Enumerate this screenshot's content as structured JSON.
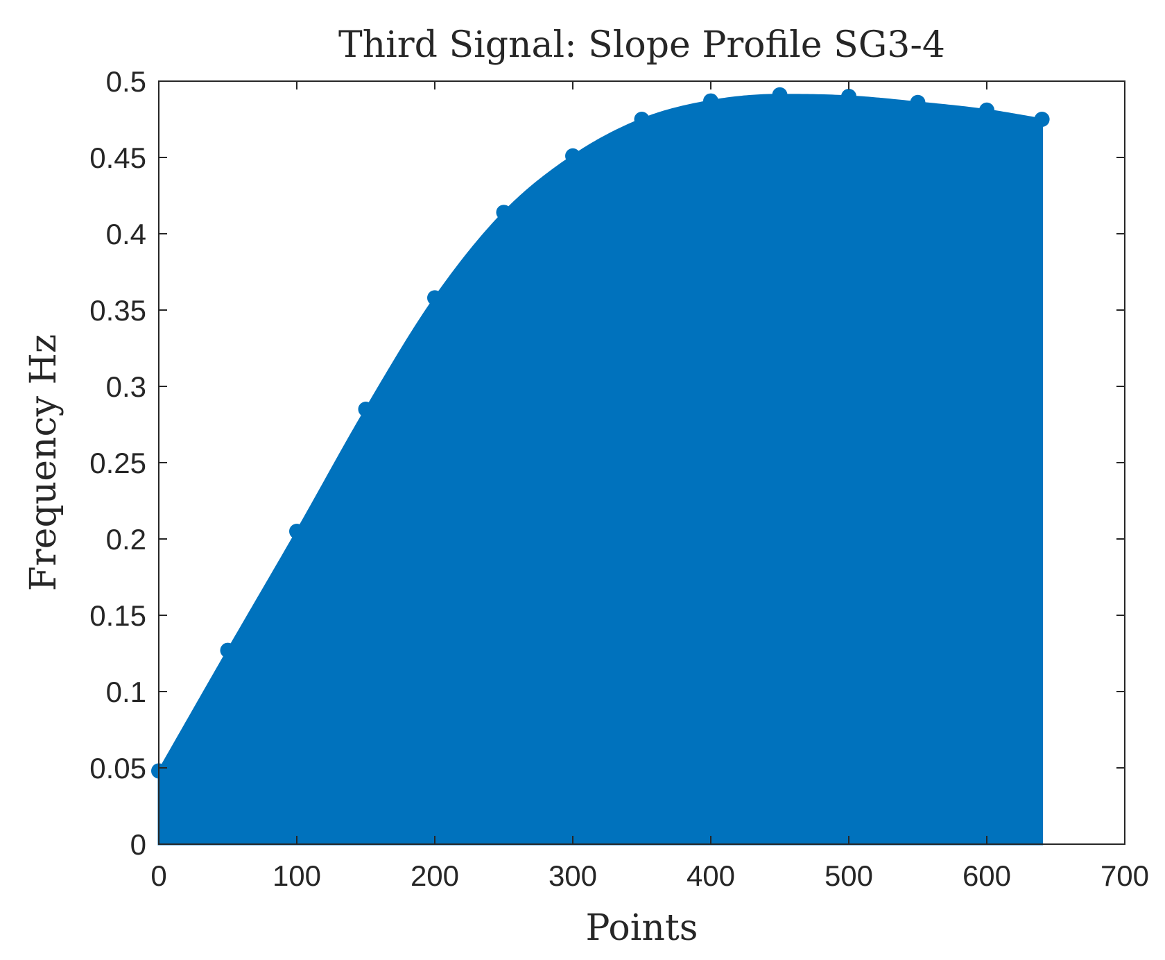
{
  "chart_data": {
    "type": "area",
    "title": "Third Signal: Slope Profile SG3-4",
    "xlabel": "Points",
    "ylabel": "Frequency Hz",
    "xlim": [
      0,
      700
    ],
    "ylim": [
      0,
      0.5
    ],
    "x_ticks": [
      "0",
      "100",
      "200",
      "300",
      "400",
      "500",
      "600",
      "700"
    ],
    "y_ticks": [
      "0",
      "0.05",
      "0.1",
      "0.15",
      "0.2",
      "0.25",
      "0.3",
      "0.35",
      "0.4",
      "0.45",
      "0.5"
    ],
    "grid": false,
    "fill_color": "#0072BD",
    "series": [
      {
        "x": [
          0,
          50,
          100,
          150,
          200,
          250,
          300,
          350,
          400,
          450,
          500,
          550,
          600,
          640
        ],
        "y": [
          0.048,
          0.127,
          0.205,
          0.285,
          0.358,
          0.414,
          0.451,
          0.475,
          0.487,
          0.491,
          0.49,
          0.486,
          0.481,
          0.475
        ]
      }
    ]
  }
}
